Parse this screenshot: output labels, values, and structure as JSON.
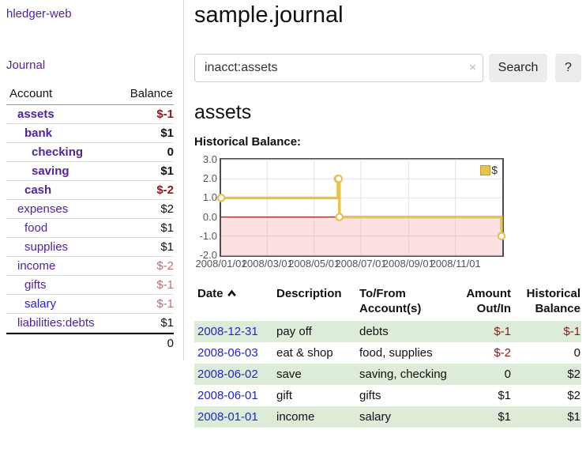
{
  "brand": "hledger-web",
  "nav": {
    "journal_label": "Journal"
  },
  "sidebar": {
    "header": {
      "account": "Account",
      "balance": "Balance"
    },
    "accounts": [
      {
        "name": "assets",
        "balance": "$-1",
        "level": 0,
        "bold": true,
        "balance_class": "neg-strong"
      },
      {
        "name": "bank",
        "balance": "$1",
        "level": 1,
        "bold": true,
        "balance_class": ""
      },
      {
        "name": "checking",
        "balance": "0",
        "level": 2,
        "bold": true,
        "balance_class": ""
      },
      {
        "name": "saving",
        "balance": "$1",
        "level": 2,
        "bold": true,
        "balance_class": ""
      },
      {
        "name": "cash",
        "balance": "$-2",
        "level": 1,
        "bold": true,
        "balance_class": "neg-strong"
      },
      {
        "name": "expenses",
        "balance": "$2",
        "level": 0,
        "bold": false,
        "balance_class": ""
      },
      {
        "name": "food",
        "balance": "$1",
        "level": 1,
        "bold": false,
        "balance_class": ""
      },
      {
        "name": "supplies",
        "balance": "$1",
        "level": 1,
        "bold": false,
        "balance_class": ""
      },
      {
        "name": "income",
        "balance": "$-2",
        "level": 0,
        "bold": false,
        "balance_class": "neg-soft"
      },
      {
        "name": "gifts",
        "balance": "$-1",
        "level": 1,
        "bold": false,
        "balance_class": "neg-soft"
      },
      {
        "name": "salary",
        "balance": "$-1",
        "level": 1,
        "bold": false,
        "balance_class": "neg-soft",
        "link_color": "blue"
      },
      {
        "name": "liabilities:debts",
        "balance": "$1",
        "level": 0,
        "bold": false,
        "balance_class": ""
      }
    ],
    "total_balance": "0"
  },
  "header": {
    "title": "sample.journal"
  },
  "search": {
    "value": "inacct:assets",
    "clear_icon": "×",
    "button_label": "Search",
    "help_label": "?"
  },
  "account_page": {
    "title": "assets",
    "chart_label": "Historical Balance:"
  },
  "chart_data": {
    "type": "line",
    "title": "Historical Balance",
    "step": true,
    "ylim": [
      -2,
      3
    ],
    "total_days": 366,
    "y_ticks": [
      "3.0",
      "2.0",
      "1.0",
      "0.0",
      "-1.0",
      "-2.0"
    ],
    "x_ticks": [
      {
        "label": "2008/01/01",
        "day": 0
      },
      {
        "label": "2008/03/01",
        "day": 60
      },
      {
        "label": "2008/05/01",
        "day": 121
      },
      {
        "label": "2008/07/01",
        "day": 182
      },
      {
        "label": "2008/09/01",
        "day": 244
      },
      {
        "label": "2008/11/01",
        "day": 305
      }
    ],
    "series": [
      {
        "name": "$",
        "color": "#e7c24f",
        "points": [
          {
            "date": "2008-01-01",
            "day": 0,
            "value": 1
          },
          {
            "date": "2008-06-01",
            "day": 152,
            "value": 2
          },
          {
            "date": "2008-06-02",
            "day": 153,
            "value": 2
          },
          {
            "date": "2008-06-03",
            "day": 154,
            "value": 0
          },
          {
            "date": "2008-12-31",
            "day": 365,
            "value": -1
          }
        ]
      }
    ],
    "grid": true,
    "grid_color": "#e4e4e4",
    "negative_fill": "rgba(239,120,120,0.22)",
    "zero_line_color": "#9b1c1c",
    "legend": {
      "label": "$",
      "position": "top-right"
    }
  },
  "transactions": {
    "headers": {
      "date": "Date",
      "description": "Description",
      "tofrom": [
        "To/From",
        "Account(s)"
      ],
      "amount": [
        "Amount",
        "Out/In"
      ],
      "historical": [
        "Historical",
        "Balance"
      ]
    },
    "rows": [
      {
        "date": "2008-12-31",
        "description": "pay off",
        "accounts": "debts",
        "amount": "$-1",
        "amount_neg": true,
        "historical": "$-1",
        "historical_neg": true
      },
      {
        "date": "2008-06-03",
        "description": "eat & shop",
        "accounts": "food, supplies",
        "amount": "$-2",
        "amount_neg": true,
        "historical": "0",
        "historical_neg": false
      },
      {
        "date": "2008-06-02",
        "description": "save",
        "accounts": "saving, checking",
        "amount": "0",
        "amount_neg": false,
        "historical": "$2",
        "historical_neg": false
      },
      {
        "date": "2008-06-01",
        "description": "gift",
        "accounts": "gifts",
        "amount": "$1",
        "amount_neg": false,
        "historical": "$2",
        "historical_neg": false
      },
      {
        "date": "2008-01-01",
        "description": "income",
        "accounts": "salary",
        "amount": "$1",
        "amount_neg": false,
        "historical": "$1",
        "historical_neg": false
      }
    ]
  }
}
